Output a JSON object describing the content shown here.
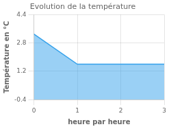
{
  "chart_data": {
    "type": "area",
    "title": "Evolution de la température",
    "xlabel": "heure par heure",
    "ylabel": "Température en °C",
    "x": [
      0,
      1,
      3
    ],
    "values": [
      3.3,
      1.6,
      1.6
    ],
    "xlim": [
      0,
      3
    ],
    "ylim": [
      -0.4,
      4.4
    ],
    "xticks": [
      0,
      1,
      2,
      3
    ],
    "yticks": [
      -0.4,
      1.2,
      2.8,
      4.4
    ],
    "grid": true
  }
}
